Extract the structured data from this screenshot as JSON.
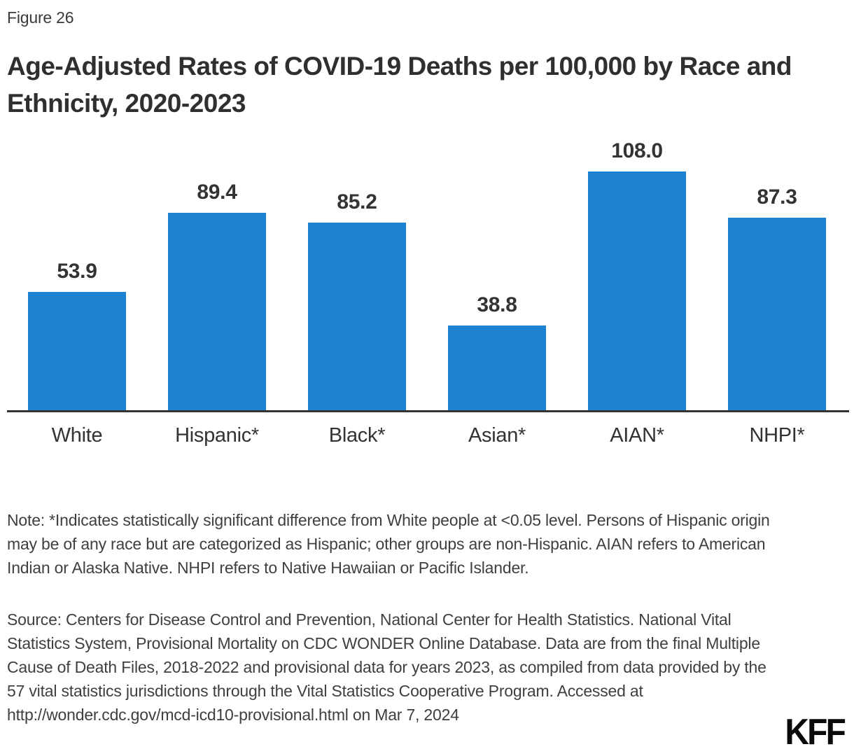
{
  "figure_label": "Figure 26",
  "title": "Age-Adjusted Rates of COVID-19 Deaths per 100,000 by Race and Ethnicity, 2020-2023",
  "chart_data": {
    "type": "bar",
    "title": "Age-Adjusted Rates of COVID-19 Deaths per 100,000 by Race and Ethnicity, 2020-2023",
    "categories": [
      "White",
      "Hispanic*",
      "Black*",
      "Asian*",
      "AIAN*",
      "NHPI*"
    ],
    "values": [
      53.9,
      89.4,
      85.2,
      38.8,
      108.0,
      87.3
    ],
    "value_labels": [
      "53.9",
      "89.4",
      "85.2",
      "38.8",
      "108.0",
      "87.3"
    ],
    "xlabel": "",
    "ylabel": "",
    "ylim": [
      0,
      126
    ],
    "grid": false,
    "legend": false,
    "y_axis_shown": false,
    "bar_color": "#1e82d2"
  },
  "note": "Note: *Indicates statistically significant difference from White people at <0.05 level. Persons of Hispanic origin may be of any race but are categorized as Hispanic; other groups are non-Hispanic. AIAN refers to American Indian or Alaska Native. NHPI refers to Native Hawaiian or Pacific Islander.",
  "source": "Source: Centers for Disease Control and Prevention, National Center for Health Statistics. National Vital Statistics System, Provisional Mortality on CDC WONDER Online Database. Data are from the final Multiple Cause of Death Files, 2018-2022 and provisional data for years 2023, as compiled from data provided by the 57 vital statistics jurisdictions through the Vital Statistics Cooperative Program. Accessed at http://wonder.cdc.gov/mcd-icd10-provisional.html on Mar 7, 2024",
  "logo_text": "KFF",
  "colors": {
    "bar": "#1e82d2",
    "axis": "#333333",
    "title_text": "#2f2f2f",
    "body_text": "#3f3f3f",
    "logo": "#0a0a0a"
  }
}
